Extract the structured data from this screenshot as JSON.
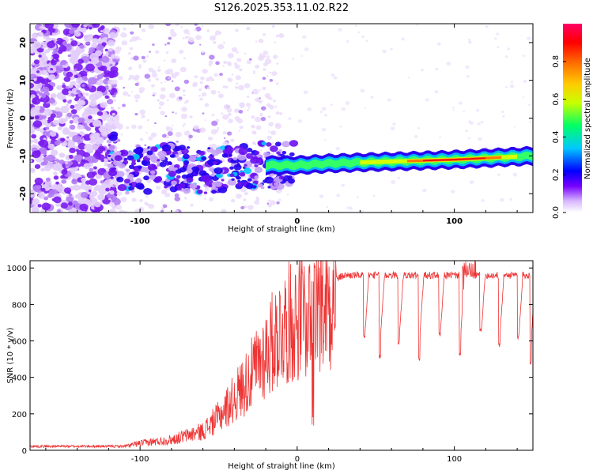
{
  "title": "S126.2025.353.11.02.R22",
  "chart_data": [
    {
      "type": "heatmap",
      "name": "spectrogram",
      "xlabel": "Height of straight line (km)",
      "ylabel": "Frequency (Hz)",
      "xlim": [
        -170,
        150
      ],
      "ylim": [
        -25,
        25
      ],
      "xticks": [
        -100,
        0,
        100
      ],
      "yticks": [
        20,
        10,
        0,
        -10,
        -20
      ],
      "colorbar": {
        "label": "Normalized spectral amplitude",
        "range": [
          0,
          1
        ],
        "ticks": [
          "0.0",
          "0.2",
          "0.4",
          "0.6",
          "0.8"
        ],
        "tick_values": [
          0.0,
          0.2,
          0.4,
          0.6,
          0.8
        ],
        "stops": [
          "#ffffff",
          "#7700ff",
          "#0000ff",
          "#00c8ff",
          "#00ff66",
          "#c8ff00",
          "#ffcc00",
          "#ff6600",
          "#ff0000",
          "#ff0066"
        ]
      },
      "ridge": {
        "description_points": [
          [
            -115,
            -15
          ],
          [
            -100,
            -14
          ],
          [
            -80,
            -13
          ],
          [
            -60,
            -14
          ],
          [
            -40,
            -13
          ],
          [
            -20,
            -12.5
          ],
          [
            0,
            -12.5
          ],
          [
            20,
            -12
          ],
          [
            60,
            -11.5
          ],
          [
            100,
            -11
          ],
          [
            150,
            -10
          ]
        ],
        "strong_from_km": 0
      }
    },
    {
      "type": "line",
      "name": "snr",
      "xlabel": "Height of straight line (km)",
      "ylabel": "SNR (10 * v/v)",
      "xlim": [
        -170,
        150
      ],
      "ylim": [
        0,
        1040
      ],
      "xticks": [
        -100,
        0,
        100
      ],
      "yticks": [
        0,
        200,
        400,
        600,
        800,
        1000
      ],
      "color": "#ee3333",
      "envelope_points": [
        [
          -170,
          22
        ],
        [
          -110,
          22
        ],
        [
          -100,
          40
        ],
        [
          -80,
          60
        ],
        [
          -60,
          110
        ],
        [
          -50,
          190
        ],
        [
          -40,
          300
        ],
        [
          -30,
          420
        ],
        [
          -20,
          560
        ],
        [
          -10,
          700
        ],
        [
          0,
          760
        ],
        [
          10,
          820
        ],
        [
          20,
          880
        ],
        [
          25,
          940
        ],
        [
          30,
          960
        ],
        [
          150,
          960
        ]
      ],
      "dropouts_km": [
        42,
        52,
        64,
        77,
        90,
        103,
        116,
        128,
        140,
        148
      ],
      "dropout_levels": [
        600,
        500,
        580,
        490,
        620,
        520,
        640,
        560,
        600,
        470
      ]
    }
  ]
}
